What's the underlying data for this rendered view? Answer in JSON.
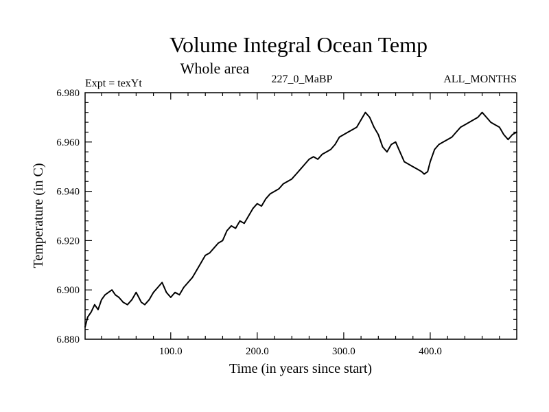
{
  "chart_data": {
    "type": "line",
    "title": "Volume Integral Ocean Temp",
    "subtitle": "Whole area",
    "left_label": "Expt = texYt",
    "center_label": "227_0_MaBP",
    "right_label": "ALL_MONTHS",
    "xlabel": "Time (in years since start)",
    "ylabel": "Temperature (in C)",
    "xlim": [
      1,
      500
    ],
    "ylim": [
      6.88,
      6.98
    ],
    "x_ticks": [
      100,
      200,
      300,
      400
    ],
    "x_tick_labels": [
      "100.0",
      "200.0",
      "300.0",
      "400.0"
    ],
    "y_ticks": [
      6.88,
      6.9,
      6.92,
      6.94,
      6.96,
      6.98
    ],
    "y_tick_labels": [
      "6.880",
      "6.900",
      "6.920",
      "6.940",
      "6.960",
      "6.980"
    ],
    "grid": false,
    "line_color": "#000000",
    "series": [
      {
        "x": [
          1,
          4,
          8,
          12,
          16,
          20,
          24,
          28,
          32,
          36,
          40,
          45,
          50,
          55,
          60,
          63,
          66,
          70,
          75,
          80,
          85,
          90,
          95,
          100,
          105,
          110,
          115,
          120,
          125,
          130,
          135,
          140,
          145,
          150,
          155,
          160,
          165,
          170,
          175,
          180,
          185,
          190,
          195,
          200,
          205,
          210,
          215,
          220,
          225,
          230,
          235,
          240,
          245,
          250,
          255,
          260,
          265,
          270,
          275,
          280,
          285,
          290,
          295,
          300,
          305,
          310,
          315,
          320,
          325,
          330,
          335,
          340,
          345,
          350,
          355,
          360,
          365,
          370,
          375,
          380,
          385,
          390,
          393,
          397,
          400,
          405,
          410,
          415,
          420,
          425,
          430,
          435,
          440,
          445,
          450,
          455,
          460,
          465,
          470,
          475,
          480,
          485,
          490,
          495,
          500
        ],
        "y": [
          6.885,
          6.889,
          6.891,
          6.894,
          6.892,
          6.896,
          6.898,
          6.899,
          6.9,
          6.898,
          6.897,
          6.895,
          6.894,
          6.896,
          6.899,
          6.897,
          6.895,
          6.894,
          6.896,
          6.899,
          6.901,
          6.903,
          6.899,
          6.897,
          6.899,
          6.898,
          6.901,
          6.903,
          6.905,
          6.908,
          6.911,
          6.914,
          6.915,
          6.917,
          6.919,
          6.92,
          6.924,
          6.926,
          6.925,
          6.928,
          6.927,
          6.93,
          6.933,
          6.935,
          6.934,
          6.937,
          6.939,
          6.94,
          6.941,
          6.943,
          6.944,
          6.945,
          6.947,
          6.949,
          6.951,
          6.953,
          6.954,
          6.953,
          6.955,
          6.956,
          6.957,
          6.959,
          6.962,
          6.963,
          6.964,
          6.965,
          6.966,
          6.969,
          6.972,
          6.97,
          6.966,
          6.963,
          6.958,
          6.956,
          6.959,
          6.96,
          6.956,
          6.952,
          6.951,
          6.95,
          6.949,
          6.948,
          6.947,
          6.948,
          6.952,
          6.957,
          6.959,
          6.96,
          6.961,
          6.962,
          6.964,
          6.966,
          6.967,
          6.968,
          6.969,
          6.97,
          6.972,
          6.97,
          6.968,
          6.967,
          6.966,
          6.963,
          6.961,
          6.963,
          6.964
        ]
      }
    ]
  }
}
